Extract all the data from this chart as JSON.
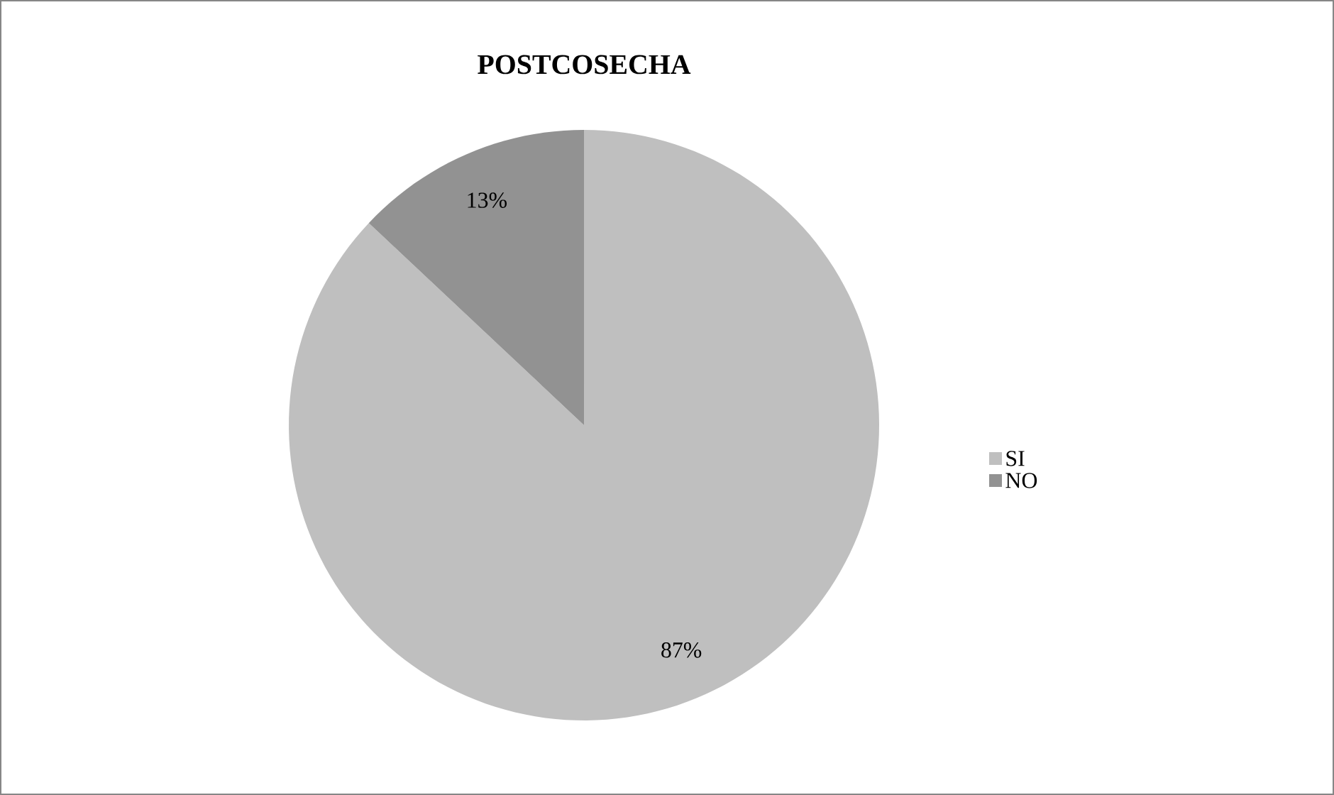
{
  "chart_data": {
    "type": "pie",
    "title": "POSTCOSECHA",
    "categories": [
      "SI",
      "NO"
    ],
    "values": [
      87,
      13
    ],
    "colors": [
      "#bfbfbf",
      "#929292"
    ],
    "value_labels": [
      "87%",
      "13%"
    ],
    "legend": "right"
  }
}
